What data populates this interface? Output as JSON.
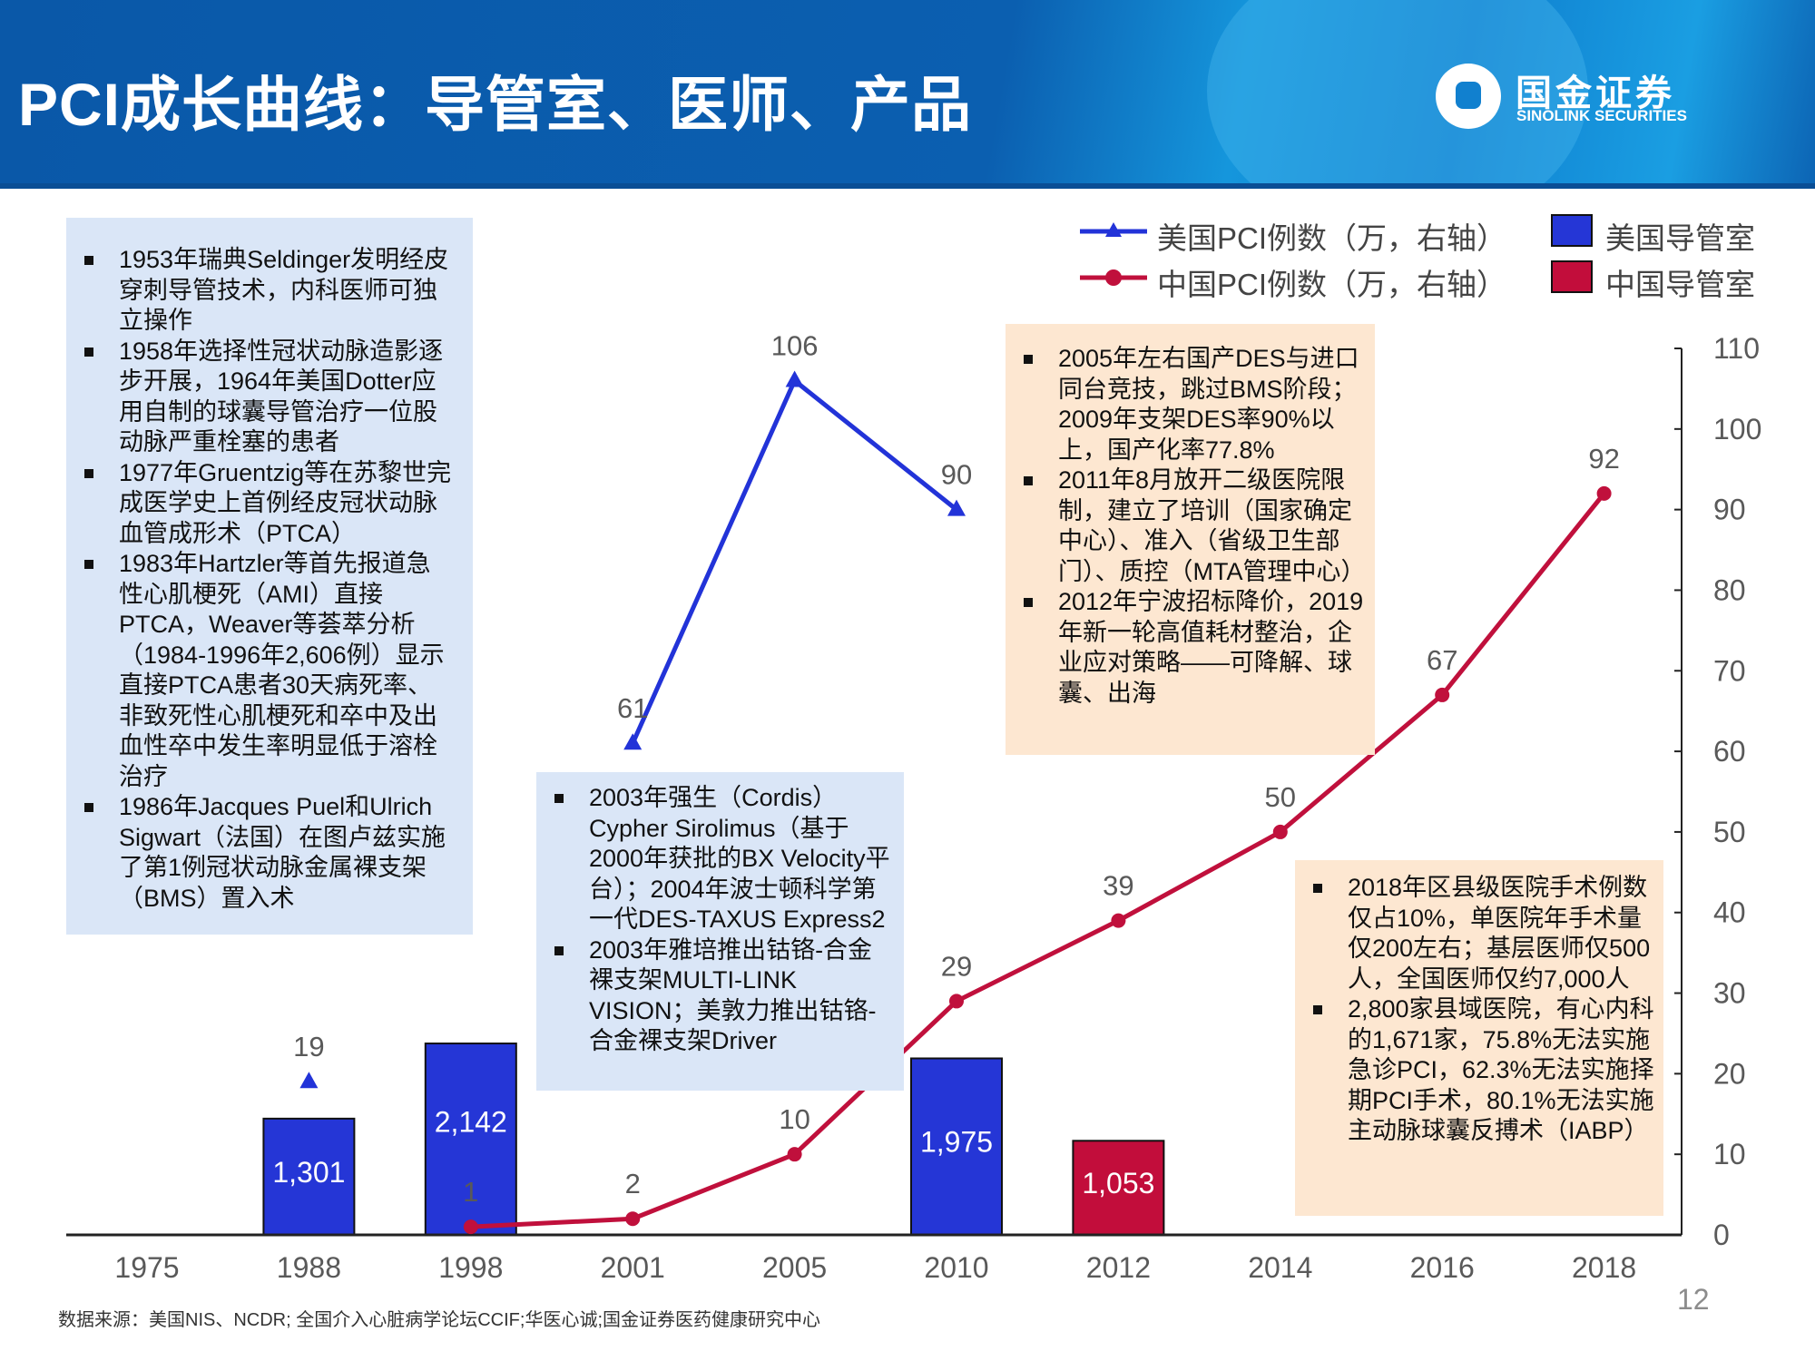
{
  "header": {
    "title": "PCI成长曲线：导管室、医师、产品",
    "logo_cn": "国金证券",
    "logo_en": "SINOLINK SECURITIES"
  },
  "legend": {
    "us_pci": "美国PCI例数（万，右轴）",
    "cn_pci": "中国PCI例数（万，右轴）",
    "us_cathlab": "美国导管室",
    "cn_cathlab": "中国导管室"
  },
  "notes": {
    "box1": [
      "1953年瑞典Seldinger发明经皮穿刺导管技术，内科医师可独立操作",
      "1958年选择性冠状动脉造影逐步开展，1964年美国Dotter应用自制的球囊导管治疗一位股动脉严重栓塞的患者",
      "1977年Gruentzig等在苏黎世完成医学史上首例经皮冠状动脉血管成形术（PTCA）",
      "1983年Hartzler等首先报道急性心肌梗死（AMI）直接PTCA，Weaver等荟萃分析（1984-1996年2,606例）显示直接PTCA患者30天病死率、非致死性心肌梗死和卒中及出血性卒中发生率明显低于溶栓治疗",
      "1986年Jacques  Puel和Ulrich Sigwart（法国）在图卢兹实施了第1例冠状动脉金属裸支架（BMS）置入术"
    ],
    "box2": [
      "2003年强生（Cordis）Cypher Sirolimus（基于2000年获批的BX  Velocity平台）；2004年波士顿科学第一代DES-TAXUS Express2",
      "2003年雅培推出钴铬-合金裸支架MULTI-LINK VISION；美敦力推出钴铬-合金裸支架Driver"
    ],
    "box3": [
      "2005年左右国产DES与进口同台竞技，跳过BMS阶段；2009年支架DES率90%以上，国产化率77.8%",
      "2011年8月放开二级医院限制，建立了培训（国家确定中心）、准入（省级卫生部门）、质控（MTA管理中心）",
      "2012年宁波招标降价，2019年新一轮高值耗材整治，企业应对策略——可降解、球囊、出海"
    ],
    "box4": [
      "2018年区县级医院手术例数仅占10%，单医院年手术量仅200左右；基层医师仅500人，全国医师仅约7,000人",
      "2,800家县域医院，有心内科的1,671家，75.8%无法实施急诊PCI，62.3%无法实施择期PCI手术，80.1%无法实施主动脉球囊反搏术（IABP）"
    ]
  },
  "chart_data": {
    "type": "bar+line",
    "categories": [
      "1975",
      "1988",
      "1998",
      "2001",
      "2005",
      "2010",
      "2012",
      "2014",
      "2016",
      "2018"
    ],
    "bars": [
      {
        "name": "美国导管室",
        "color": "#2536d6",
        "values": [
          null,
          1301,
          2142,
          null,
          null,
          1975,
          null,
          null,
          null,
          null
        ],
        "labels": [
          null,
          "1,301",
          "2,142",
          null,
          null,
          "1,975",
          null,
          null,
          null,
          null
        ]
      },
      {
        "name": "中国导管室",
        "color": "#c20d3b",
        "values": [
          null,
          null,
          null,
          null,
          null,
          null,
          1053,
          null,
          null,
          null
        ],
        "labels": [
          null,
          null,
          null,
          null,
          null,
          null,
          "1,053",
          null,
          null,
          null
        ]
      }
    ],
    "lines": [
      {
        "name": "美国PCI例数（万，右轴）",
        "color": "#2233d8",
        "marker": "triangle",
        "values": [
          null,
          19,
          null,
          61,
          106,
          90,
          null,
          null,
          null,
          null
        ],
        "segments": [
          [
            3,
            4,
            5
          ]
        ]
      },
      {
        "name": "中国PCI例数（万，右轴）",
        "color": "#c0103c",
        "marker": "circle",
        "values": [
          null,
          null,
          1,
          2,
          10,
          29,
          39,
          50,
          67,
          92
        ],
        "segments": [
          [
            2,
            3,
            4,
            5,
            6,
            7,
            8,
            9
          ]
        ]
      }
    ],
    "y_right": {
      "ylim": [
        0,
        110
      ],
      "ticks": [
        "0",
        "10",
        "20",
        "30",
        "40",
        "50",
        "60",
        "70",
        "80",
        "90",
        "100",
        "110"
      ]
    },
    "y_left": {
      "ylim": [
        0,
        9920
      ],
      "visible": false
    },
    "legend_position": "top-right",
    "grid": false
  },
  "footer": {
    "source": "数据来源：美国NIS、NCDR; 全国介入心脏病学论坛CCIF;华医心诚;国金证券医药健康研究中心",
    "page": "12"
  }
}
